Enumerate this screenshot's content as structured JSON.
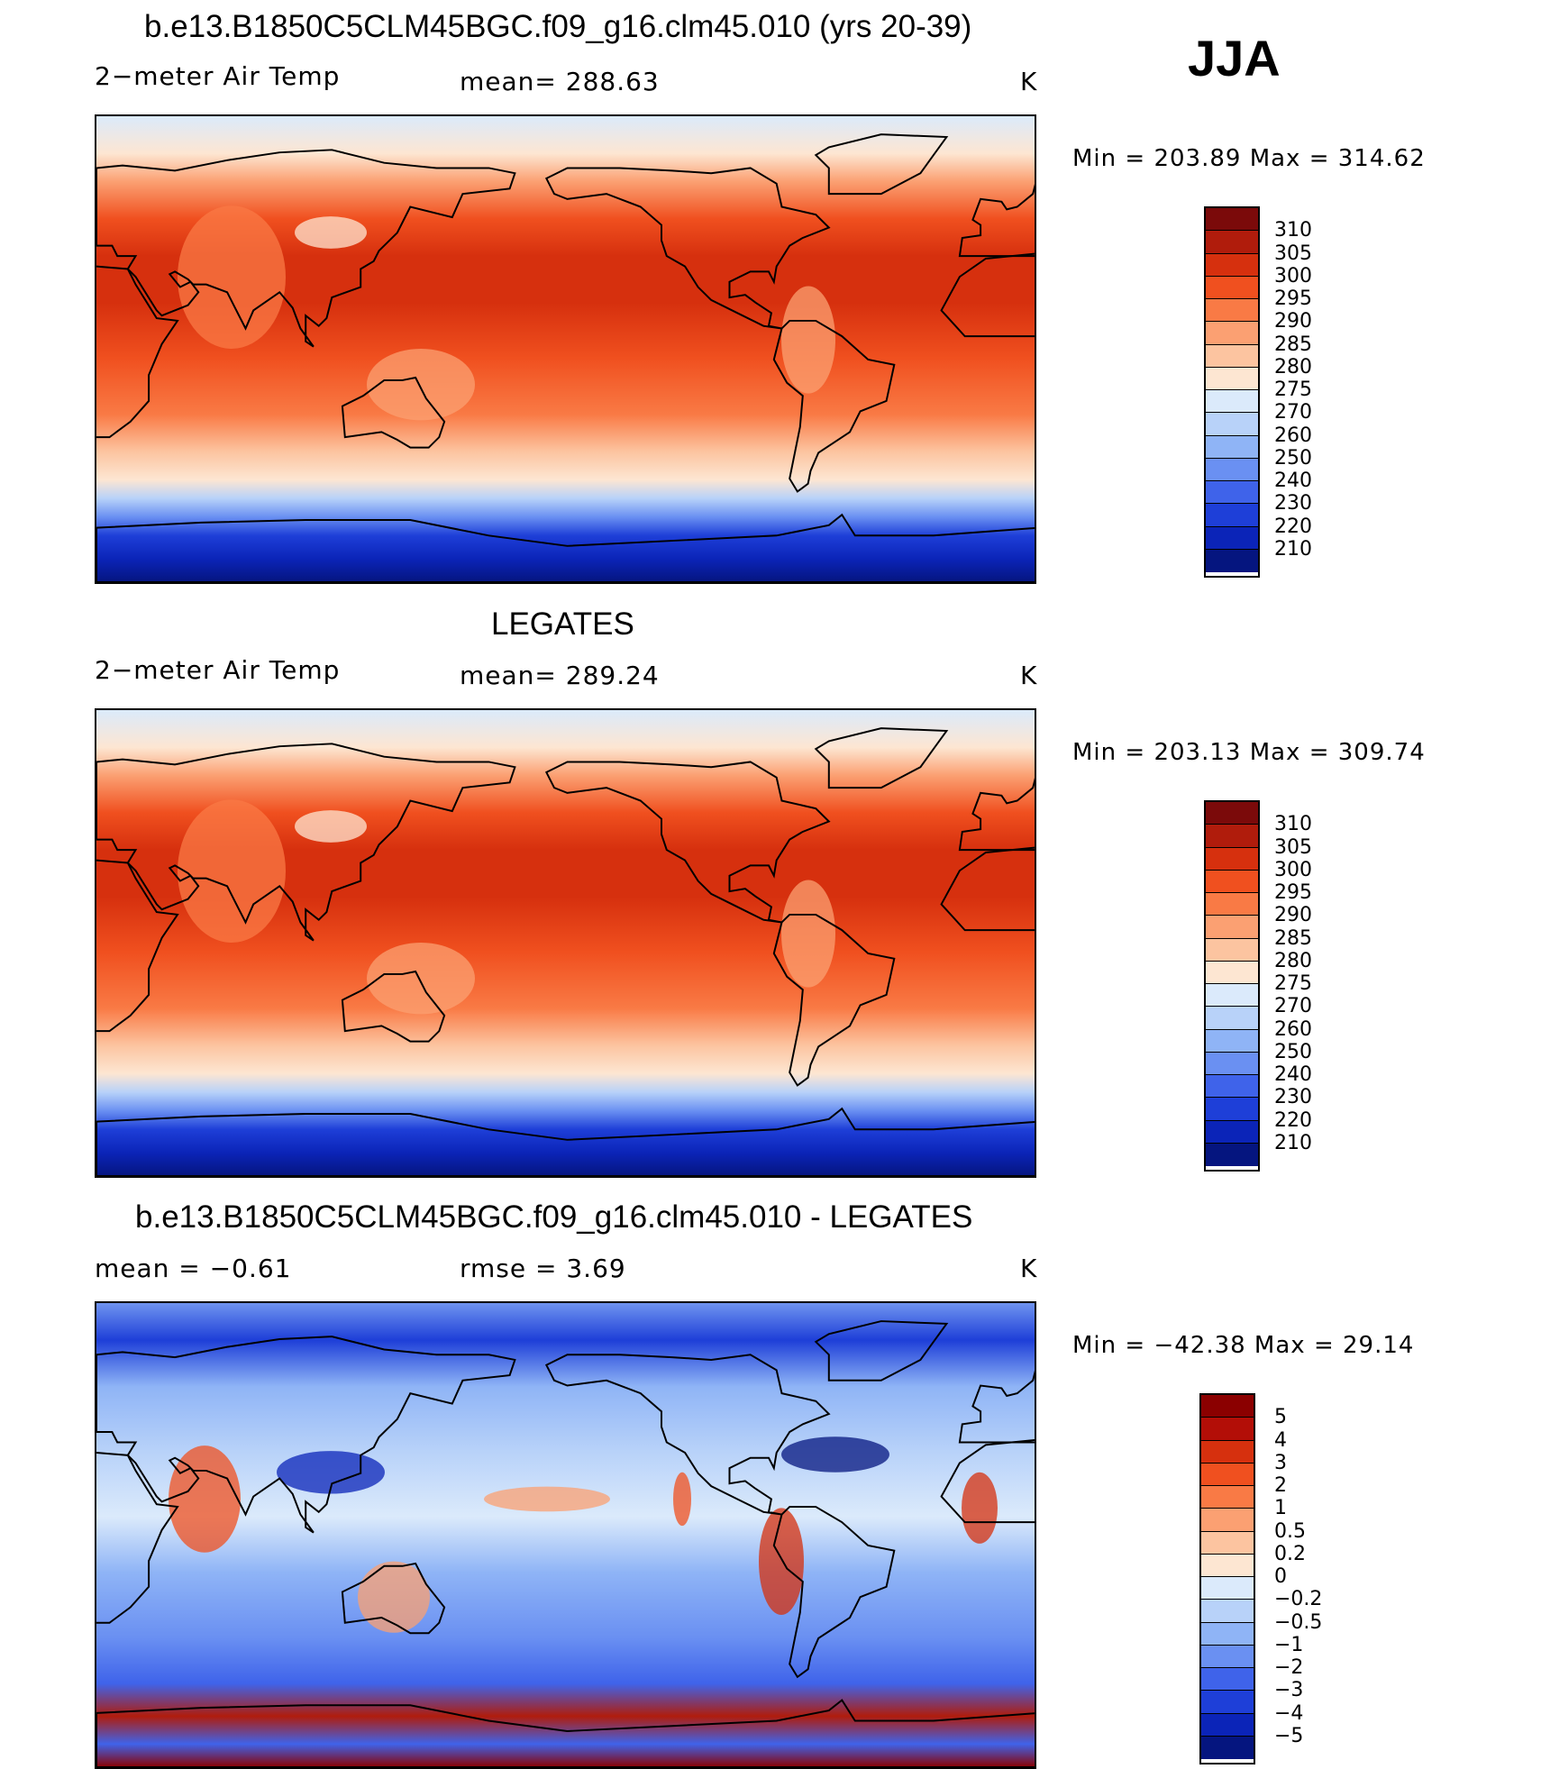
{
  "season": "JJA",
  "units": "K",
  "panels": [
    {
      "title": "b.e13.B1850C5CLM45BGC.f09_g16.clm45.010 (yrs 20-39)",
      "variable": "2−meter Air Temp",
      "stat1": "mean=  288.63",
      "stat2": "",
      "minmax": "Min  =  203.89  Max  =  314.62"
    },
    {
      "title": "LEGATES",
      "variable": "2−meter Air Temp",
      "stat1": "mean=  289.24",
      "stat2": "",
      "minmax": "Min  =  203.13  Max  =  309.74"
    },
    {
      "title": "b.e13.B1850C5CLM45BGC.f09_g16.clm45.010 - LEGATES",
      "variable": "",
      "stat1": "mean  =    −0.61",
      "stat2": "rmse  =     3.69",
      "minmax": "Min  =  −42.38  Max  =    29.14"
    }
  ],
  "colorbar_abs": {
    "labels": [
      "310",
      "305",
      "300",
      "295",
      "290",
      "285",
      "280",
      "275",
      "270",
      "260",
      "250",
      "240",
      "230",
      "220",
      "210"
    ],
    "colors": [
      "#7b0a0a",
      "#b01c0c",
      "#d6300e",
      "#f0501f",
      "#f97a45",
      "#fba072",
      "#fcc4a0",
      "#fde6d2",
      "#dbeafb",
      "#b8d2f9",
      "#8fb4f6",
      "#6a90f2",
      "#3f63ea",
      "#1e3fd8",
      "#0b24b8",
      "#05157f"
    ]
  },
  "colorbar_diff": {
    "labels": [
      "5",
      "4",
      "3",
      "2",
      "1",
      "0.5",
      "0.2",
      "0",
      "−0.2",
      "−0.5",
      "−1",
      "−2",
      "−3",
      "−4",
      "−5"
    ],
    "colors": [
      "#8b0000",
      "#b30e07",
      "#d6300e",
      "#f0501f",
      "#f97a45",
      "#fba072",
      "#fcc4a0",
      "#fde6d2",
      "#dbeafb",
      "#b8d2f9",
      "#8fb4f6",
      "#6a90f2",
      "#3f63ea",
      "#1e3fd8",
      "#0b24b8",
      "#05157f"
    ]
  }
}
